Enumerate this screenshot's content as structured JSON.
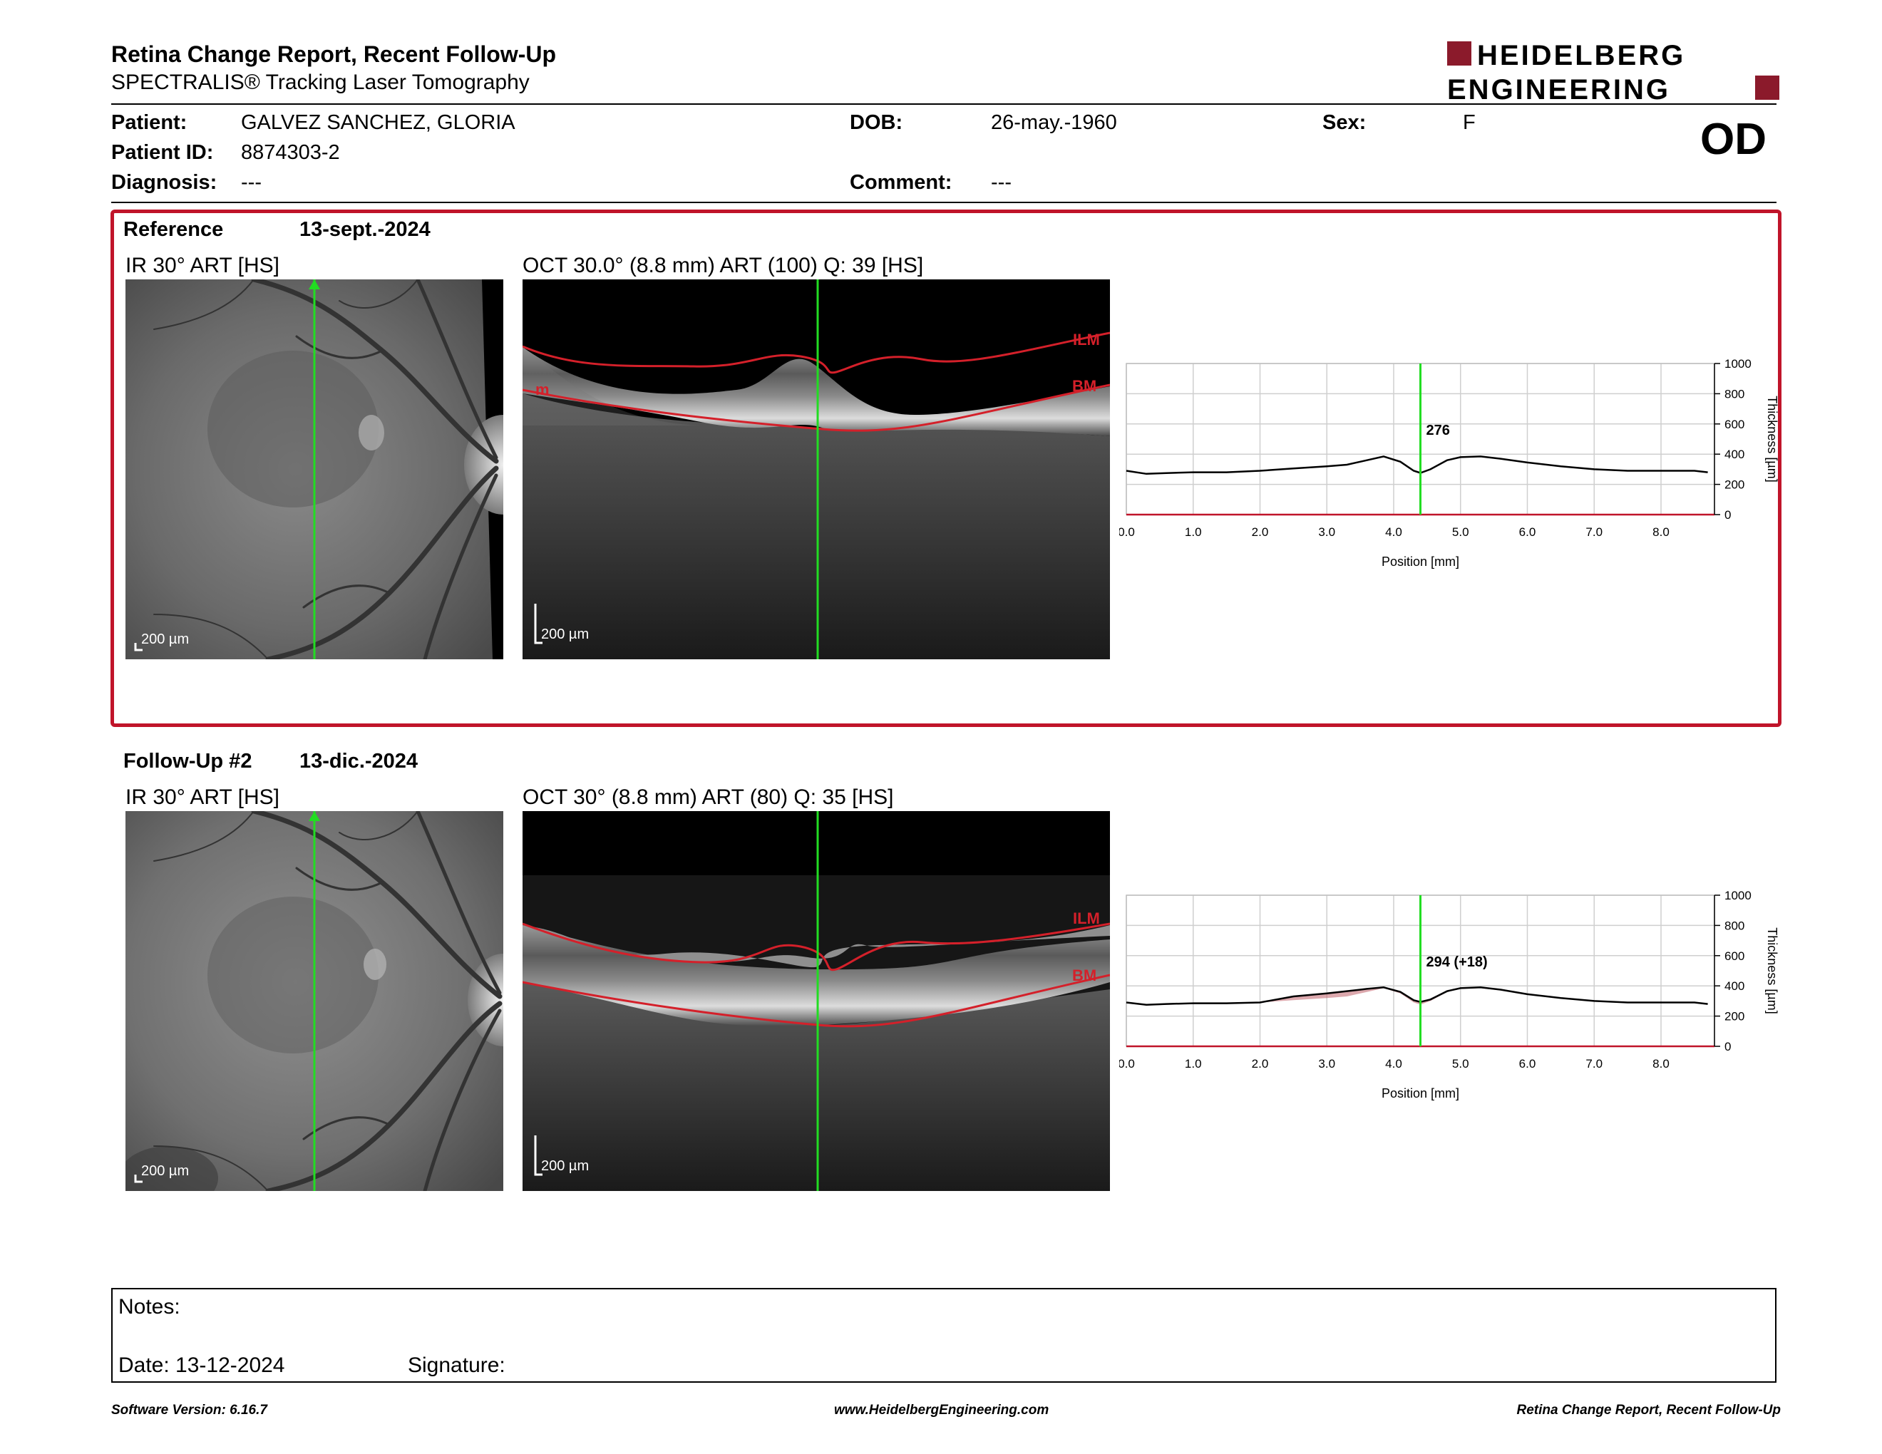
{
  "header": {
    "title": "Retina Change Report, Recent Follow-Up",
    "subtitle": "SPECTRALIS® Tracking Laser Tomography",
    "logo_line1": "HEIDELBERG",
    "logo_line2": "ENGINEERING",
    "eye": "OD"
  },
  "patient": {
    "patient_label": "Patient:",
    "patient_value": "GALVEZ SANCHEZ, GLORIA",
    "id_label": "Patient ID:",
    "id_value": "8874303-2",
    "diagnosis_label": "Diagnosis:",
    "diagnosis_value": "---",
    "dob_label": "DOB:",
    "dob_value": "26-may.-1960",
    "comment_label": "Comment:",
    "comment_value": "---",
    "sex_label": "Sex:",
    "sex_value": "F"
  },
  "reference": {
    "section_label": "Reference",
    "date": "13-sept.-2024",
    "ir_label": "IR 30° ART [HS]",
    "oct_label": "OCT 30.0° (8.8 mm) ART (100) Q: 39 [HS]",
    "scale_label": "200 µm",
    "ilm_label": "ILM",
    "bm_label": "BM",
    "m_label": "m"
  },
  "followup": {
    "section_label": "Follow-Up #2",
    "date": "13-dic.-2024",
    "ir_label": "IR 30° ART [HS]",
    "oct_label": "OCT 30° (8.8 mm) ART (80) Q: 35 [HS]",
    "scale_label": "200 µm",
    "ilm_label": "ILM",
    "bm_label": "BM"
  },
  "chart_data": [
    {
      "type": "line",
      "xlabel": "Position [mm]",
      "ylabel": "Thickness [µm]",
      "xlim": [
        0.0,
        8.8
      ],
      "ylim": [
        0,
        1000
      ],
      "xticks": [
        "0.0",
        "1.0",
        "2.0",
        "3.0",
        "4.0",
        "5.0",
        "6.0",
        "7.0",
        "8.0"
      ],
      "yticks": [
        "0",
        "200",
        "400",
        "600",
        "800",
        "1000"
      ],
      "cursor_x": 4.4,
      "cursor_label": "276",
      "grid": true,
      "series": [
        {
          "x": [
            0.0,
            0.3,
            0.6,
            1.0,
            1.5,
            2.0,
            2.5,
            3.0,
            3.3,
            3.6,
            3.85,
            4.1,
            4.3,
            4.4,
            4.55,
            4.8,
            5.0,
            5.3,
            5.6,
            6.0,
            6.5,
            7.0,
            7.5,
            8.0,
            8.5,
            8.7
          ],
          "y": [
            290,
            270,
            275,
            280,
            280,
            290,
            305,
            320,
            330,
            360,
            385,
            350,
            290,
            276,
            300,
            360,
            380,
            385,
            370,
            345,
            320,
            300,
            290,
            290,
            290,
            280
          ]
        }
      ]
    },
    {
      "type": "line",
      "xlabel": "Position [mm]",
      "ylabel": "Thickness [µm]",
      "xlim": [
        0.0,
        8.8
      ],
      "ylim": [
        0,
        1000
      ],
      "xticks": [
        "0.0",
        "1.0",
        "2.0",
        "3.0",
        "4.0",
        "5.0",
        "6.0",
        "7.0",
        "8.0"
      ],
      "yticks": [
        "0",
        "200",
        "400",
        "600",
        "800",
        "1000"
      ],
      "cursor_x": 4.4,
      "cursor_label": "294 (+18)",
      "grid": true,
      "series": [
        {
          "x": [
            0.0,
            0.3,
            0.6,
            1.0,
            1.5,
            2.0,
            2.5,
            3.0,
            3.3,
            3.6,
            3.85,
            4.1,
            4.3,
            4.4,
            4.55,
            4.8,
            5.0,
            5.3,
            5.6,
            6.0,
            6.5,
            7.0,
            7.5,
            8.0,
            8.5,
            8.7
          ],
          "y": [
            290,
            275,
            280,
            285,
            285,
            290,
            330,
            350,
            365,
            380,
            390,
            360,
            305,
            294,
            310,
            365,
            385,
            390,
            375,
            345,
            320,
            300,
            290,
            290,
            290,
            280
          ]
        }
      ]
    }
  ],
  "notes": {
    "notes_label": "Notes:",
    "date_label": "Date: 13-12-2024",
    "signature_label": "Signature:"
  },
  "footer": {
    "left": "Software Version: 6.16.7",
    "center": "www.HeidelbergEngineering.com",
    "right": "Retina Change Report, Recent Follow-Up"
  },
  "colors": {
    "brand_red": "#8b1a2b",
    "frame_red": "#c0142a",
    "scan_cursor": "#22dd22",
    "layer_red": "#d4202a"
  }
}
